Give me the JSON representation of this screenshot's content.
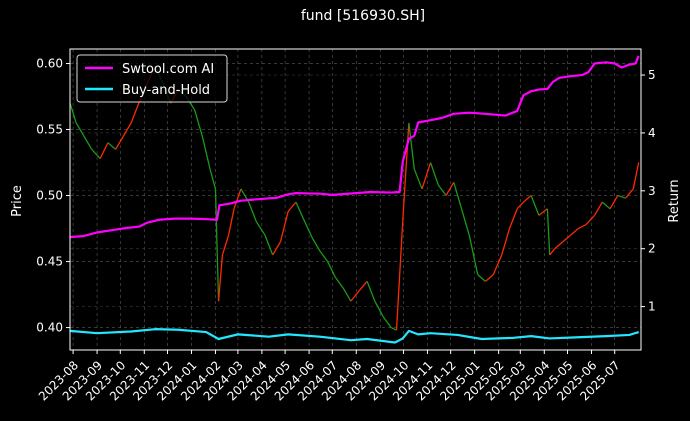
{
  "chart_data": {
    "type": "line",
    "title": "fund [516930.SH]",
    "ylabel_left": "Price",
    "ylabel_right": "Return",
    "xlim": [
      "2023-07-28",
      "2025-08-04"
    ],
    "ylim_left": [
      0.383,
      0.611
    ],
    "ylim_right": [
      0.25,
      5.45
    ],
    "yticks_left": [
      0.4,
      0.45,
      0.5,
      0.55,
      0.6
    ],
    "yticks_right": [
      1,
      2,
      3,
      4,
      5
    ],
    "grid": true,
    "legend": {
      "placement": "top-left"
    },
    "x_ticks": [
      {
        "date": "2023-08-01",
        "label": "2023-08"
      },
      {
        "date": "2023-09-01",
        "label": "2023-09"
      },
      {
        "date": "2023-10-01",
        "label": "2023-10"
      },
      {
        "date": "2023-11-01",
        "label": "2023-11"
      },
      {
        "date": "2023-12-01",
        "label": "2023-12"
      },
      {
        "date": "2024-01-01",
        "label": "2024-01"
      },
      {
        "date": "2024-02-01",
        "label": "2024-02"
      },
      {
        "date": "2024-03-01",
        "label": "2024-03"
      },
      {
        "date": "2024-04-01",
        "label": "2024-04"
      },
      {
        "date": "2024-05-01",
        "label": "2024-05"
      },
      {
        "date": "2024-06-01",
        "label": "2024-06"
      },
      {
        "date": "2024-07-01",
        "label": "2024-07"
      },
      {
        "date": "2024-08-01",
        "label": "2024-08"
      },
      {
        "date": "2024-09-01",
        "label": "2024-09"
      },
      {
        "date": "2024-10-01",
        "label": "2024-10"
      },
      {
        "date": "2024-11-01",
        "label": "2024-11"
      },
      {
        "date": "2024-12-01",
        "label": "2024-12"
      },
      {
        "date": "2025-01-01",
        "label": "2025-01"
      },
      {
        "date": "2025-02-01",
        "label": "2025-02"
      },
      {
        "date": "2025-03-01",
        "label": "2025-03"
      },
      {
        "date": "2025-04-01",
        "label": "2025-04"
      },
      {
        "date": "2025-05-01",
        "label": "2025-05"
      },
      {
        "date": "2025-06-01",
        "label": "2025-06"
      },
      {
        "date": "2025-07-01",
        "label": "2025-07"
      }
    ],
    "price_series": {
      "axis": "left",
      "colors": {
        "up": "#ff2a00",
        "down": "#1a9a1a"
      },
      "points": [
        [
          "2023-07-28",
          0.57
        ],
        [
          "2023-08-05",
          0.555
        ],
        [
          "2023-08-15",
          0.545
        ],
        [
          "2023-08-25",
          0.535
        ],
        [
          "2023-09-05",
          0.528
        ],
        [
          "2023-09-15",
          0.54
        ],
        [
          "2023-09-25",
          0.535
        ],
        [
          "2023-10-05",
          0.545
        ],
        [
          "2023-10-15",
          0.555
        ],
        [
          "2023-10-25",
          0.57
        ],
        [
          "2023-11-05",
          0.585
        ],
        [
          "2023-11-15",
          0.598
        ],
        [
          "2023-11-25",
          0.585
        ],
        [
          "2023-12-05",
          0.57
        ],
        [
          "2023-12-15",
          0.58
        ],
        [
          "2023-12-25",
          0.575
        ],
        [
          "2024-01-05",
          0.565
        ],
        [
          "2024-01-15",
          0.545
        ],
        [
          "2024-01-25",
          0.52
        ],
        [
          "2024-02-01",
          0.505
        ],
        [
          "2024-02-05",
          0.42
        ],
        [
          "2024-02-10",
          0.455
        ],
        [
          "2024-02-18",
          0.47
        ],
        [
          "2024-02-25",
          0.49
        ],
        [
          "2024-03-05",
          0.505
        ],
        [
          "2024-03-15",
          0.495
        ],
        [
          "2024-03-25",
          0.48
        ],
        [
          "2024-04-05",
          0.47
        ],
        [
          "2024-04-15",
          0.455
        ],
        [
          "2024-04-25",
          0.465
        ],
        [
          "2024-05-05",
          0.488
        ],
        [
          "2024-05-15",
          0.495
        ],
        [
          "2024-05-25",
          0.482
        ],
        [
          "2024-06-05",
          0.468
        ],
        [
          "2024-06-15",
          0.458
        ],
        [
          "2024-06-25",
          0.45
        ],
        [
          "2024-07-05",
          0.438
        ],
        [
          "2024-07-15",
          0.43
        ],
        [
          "2024-07-25",
          0.42
        ],
        [
          "2024-08-05",
          0.428
        ],
        [
          "2024-08-15",
          0.435
        ],
        [
          "2024-08-25",
          0.42
        ],
        [
          "2024-09-05",
          0.408
        ],
        [
          "2024-09-15",
          0.4
        ],
        [
          "2024-09-22",
          0.398
        ],
        [
          "2024-09-30",
          0.48
        ],
        [
          "2024-10-08",
          0.555
        ],
        [
          "2024-10-15",
          0.52
        ],
        [
          "2024-10-25",
          0.505
        ],
        [
          "2024-11-05",
          0.525
        ],
        [
          "2024-11-15",
          0.508
        ],
        [
          "2024-11-25",
          0.5
        ],
        [
          "2024-12-05",
          0.51
        ],
        [
          "2024-12-15",
          0.49
        ],
        [
          "2024-12-25",
          0.47
        ],
        [
          "2025-01-05",
          0.44
        ],
        [
          "2025-01-15",
          0.435
        ],
        [
          "2025-01-25",
          0.44
        ],
        [
          "2025-02-05",
          0.455
        ],
        [
          "2025-02-15",
          0.475
        ],
        [
          "2025-02-25",
          0.49
        ],
        [
          "2025-03-05",
          0.495
        ],
        [
          "2025-03-15",
          0.5
        ],
        [
          "2025-03-25",
          0.485
        ],
        [
          "2025-04-05",
          0.49
        ],
        [
          "2025-04-08",
          0.455
        ],
        [
          "2025-04-15",
          0.46
        ],
        [
          "2025-04-25",
          0.465
        ],
        [
          "2025-05-05",
          0.47
        ],
        [
          "2025-05-15",
          0.475
        ],
        [
          "2025-05-25",
          0.478
        ],
        [
          "2025-06-05",
          0.485
        ],
        [
          "2025-06-15",
          0.495
        ],
        [
          "2025-06-25",
          0.49
        ],
        [
          "2025-07-05",
          0.5
        ],
        [
          "2025-07-15",
          0.498
        ],
        [
          "2025-07-25",
          0.505
        ],
        [
          "2025-08-01",
          0.525
        ]
      ]
    },
    "series": [
      {
        "name": "Swtool.com AI",
        "axis": "right",
        "color": "#ff00ff",
        "points": [
          [
            "2023-07-28",
            2.2
          ],
          [
            "2023-08-15",
            2.22
          ],
          [
            "2023-09-01",
            2.28
          ],
          [
            "2023-09-20",
            2.32
          ],
          [
            "2023-10-10",
            2.36
          ],
          [
            "2023-10-25",
            2.38
          ],
          [
            "2023-11-05",
            2.45
          ],
          [
            "2023-11-20",
            2.5
          ],
          [
            "2023-12-10",
            2.52
          ],
          [
            "2024-01-01",
            2.52
          ],
          [
            "2024-01-20",
            2.51
          ],
          [
            "2024-02-03",
            2.5
          ],
          [
            "2024-02-06",
            2.75
          ],
          [
            "2024-02-20",
            2.78
          ],
          [
            "2024-03-05",
            2.83
          ],
          [
            "2024-04-01",
            2.86
          ],
          [
            "2024-04-20",
            2.88
          ],
          [
            "2024-05-05",
            2.94
          ],
          [
            "2024-05-15",
            2.96
          ],
          [
            "2024-06-15",
            2.95
          ],
          [
            "2024-07-01",
            2.93
          ],
          [
            "2024-08-01",
            2.96
          ],
          [
            "2024-08-20",
            2.98
          ],
          [
            "2024-09-15",
            2.97
          ],
          [
            "2024-09-26",
            2.98
          ],
          [
            "2024-09-30",
            3.5
          ],
          [
            "2024-10-08",
            3.9
          ],
          [
            "2024-10-15",
            3.95
          ],
          [
            "2024-10-20",
            4.18
          ],
          [
            "2024-11-05",
            4.22
          ],
          [
            "2024-11-20",
            4.26
          ],
          [
            "2024-12-05",
            4.33
          ],
          [
            "2024-12-25",
            4.35
          ],
          [
            "2025-01-15",
            4.33
          ],
          [
            "2025-02-10",
            4.3
          ],
          [
            "2025-02-25",
            4.38
          ],
          [
            "2025-03-05",
            4.65
          ],
          [
            "2025-03-15",
            4.72
          ],
          [
            "2025-03-25",
            4.75
          ],
          [
            "2025-04-05",
            4.76
          ],
          [
            "2025-04-12",
            4.88
          ],
          [
            "2025-04-20",
            4.95
          ],
          [
            "2025-05-05",
            4.98
          ],
          [
            "2025-05-20",
            5.0
          ],
          [
            "2025-05-28",
            5.05
          ],
          [
            "2025-06-05",
            5.2
          ],
          [
            "2025-06-20",
            5.22
          ],
          [
            "2025-07-01",
            5.2
          ],
          [
            "2025-07-10",
            5.13
          ],
          [
            "2025-07-20",
            5.18
          ],
          [
            "2025-07-28",
            5.2
          ],
          [
            "2025-08-01",
            5.33
          ]
        ]
      },
      {
        "name": "Buy-and-Hold",
        "axis": "right",
        "color": "#22e8ff",
        "points": [
          [
            "2023-07-28",
            0.58
          ],
          [
            "2023-09-01",
            0.54
          ],
          [
            "2023-10-15",
            0.57
          ],
          [
            "2023-11-15",
            0.61
          ],
          [
            "2023-12-15",
            0.6
          ],
          [
            "2024-01-20",
            0.56
          ],
          [
            "2024-02-05",
            0.44
          ],
          [
            "2024-03-01",
            0.52
          ],
          [
            "2024-04-10",
            0.48
          ],
          [
            "2024-05-05",
            0.52
          ],
          [
            "2024-06-15",
            0.48
          ],
          [
            "2024-07-25",
            0.42
          ],
          [
            "2024-08-15",
            0.44
          ],
          [
            "2024-09-20",
            0.38
          ],
          [
            "2024-09-30",
            0.45
          ],
          [
            "2024-10-08",
            0.58
          ],
          [
            "2024-10-20",
            0.52
          ],
          [
            "2024-11-05",
            0.54
          ],
          [
            "2024-12-10",
            0.51
          ],
          [
            "2025-01-10",
            0.44
          ],
          [
            "2025-02-20",
            0.46
          ],
          [
            "2025-03-15",
            0.49
          ],
          [
            "2025-04-08",
            0.45
          ],
          [
            "2025-05-15",
            0.47
          ],
          [
            "2025-06-20",
            0.49
          ],
          [
            "2025-07-20",
            0.51
          ],
          [
            "2025-08-01",
            0.56
          ]
        ]
      }
    ]
  }
}
